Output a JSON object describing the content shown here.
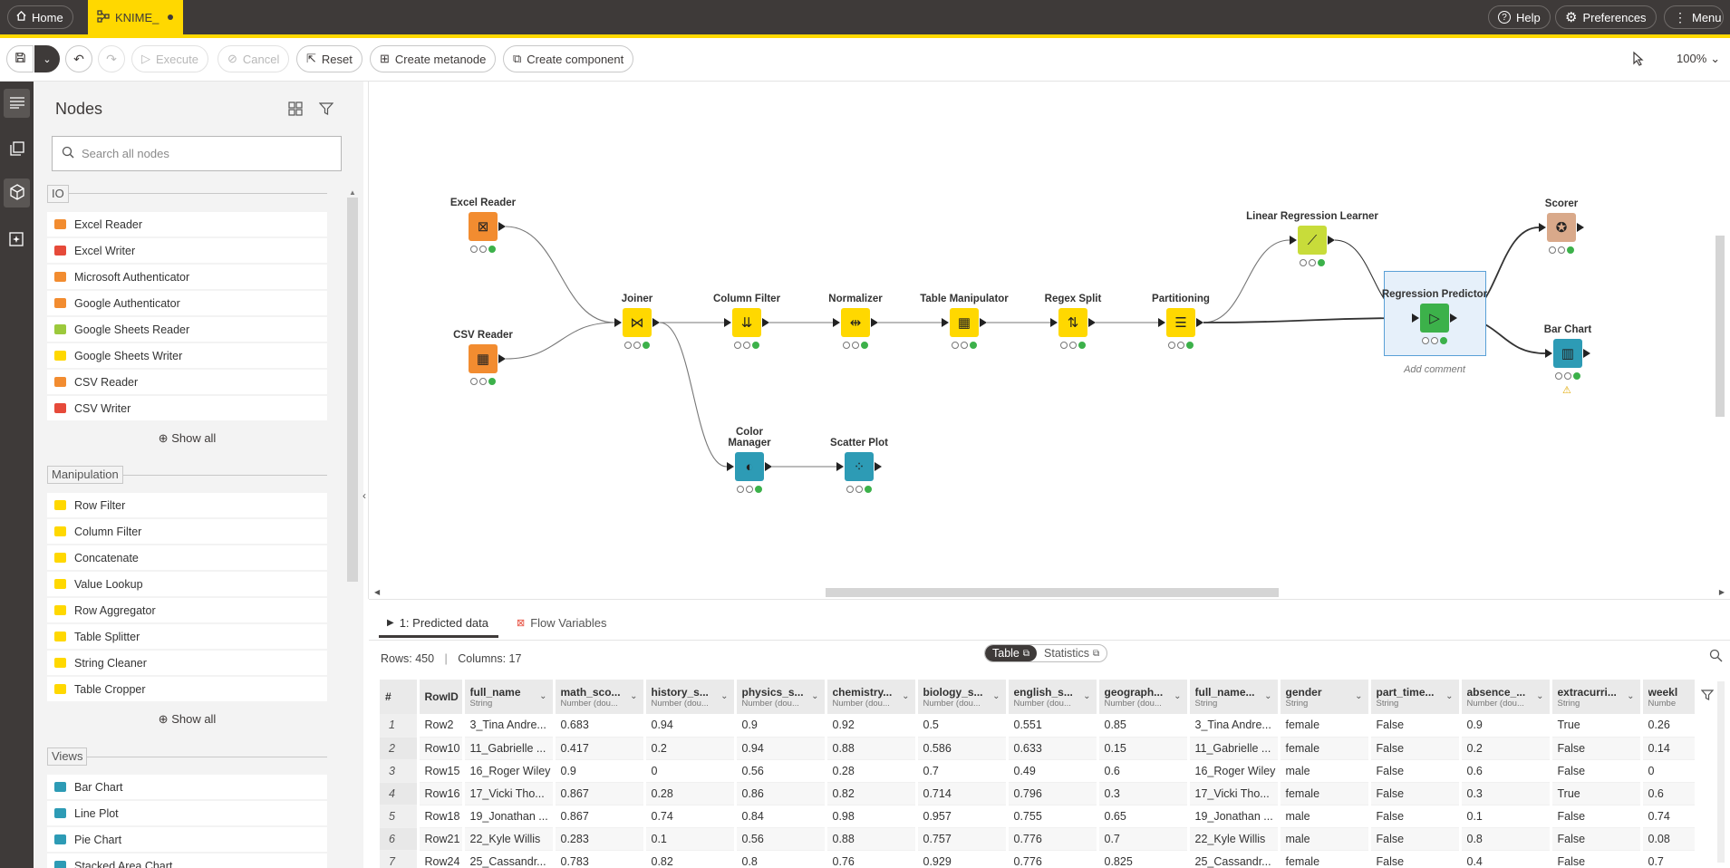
{
  "topbar": {
    "home_label": "Home",
    "workflow_tab_label": "KNIME_",
    "help_label": "Help",
    "preferences_label": "Preferences",
    "menu_label": "Menu"
  },
  "toolbar": {
    "execute_label": "Execute",
    "cancel_label": "Cancel",
    "reset_label": "Reset",
    "create_metanode_label": "Create metanode",
    "create_component_label": "Create component",
    "zoom_label": "100%"
  },
  "panel": {
    "title": "Nodes",
    "search_placeholder": "Search all nodes",
    "show_all_label": "Show all",
    "categories": [
      {
        "name": "IO",
        "items": [
          {
            "label": "Excel Reader",
            "color": "#f28c30"
          },
          {
            "label": "Excel Writer",
            "color": "#e64a3a"
          },
          {
            "label": "Microsoft Authenticator",
            "color": "#f28c30"
          },
          {
            "label": "Google Authenticator",
            "color": "#f28c30"
          },
          {
            "label": "Google Sheets Reader",
            "color": "#9cc93c"
          },
          {
            "label": "Google Sheets Writer",
            "color": "#ffd800"
          },
          {
            "label": "CSV Reader",
            "color": "#f28c30"
          },
          {
            "label": "CSV Writer",
            "color": "#e64a3a"
          }
        ]
      },
      {
        "name": "Manipulation",
        "items": [
          {
            "label": "Row Filter",
            "color": "#ffd800"
          },
          {
            "label": "Column Filter",
            "color": "#ffd800"
          },
          {
            "label": "Concatenate",
            "color": "#ffd800"
          },
          {
            "label": "Value Lookup",
            "color": "#ffd800"
          },
          {
            "label": "Row Aggregator",
            "color": "#ffd800"
          },
          {
            "label": "Table Splitter",
            "color": "#ffd800"
          },
          {
            "label": "String Cleaner",
            "color": "#ffd800"
          },
          {
            "label": "Table Cropper",
            "color": "#ffd800"
          }
        ]
      },
      {
        "name": "Views",
        "items": [
          {
            "label": "Bar Chart",
            "color": "#2d9bb5"
          },
          {
            "label": "Line Plot",
            "color": "#2d9bb5"
          },
          {
            "label": "Pie Chart",
            "color": "#2d9bb5"
          },
          {
            "label": "Stacked Area Chart",
            "color": "#2d9bb5"
          }
        ]
      }
    ]
  },
  "canvas": {
    "nodes": [
      {
        "label": "Excel Reader",
        "color": "#f28c30",
        "glyph": "⊠"
      },
      {
        "label": "CSV Reader",
        "color": "#f28c30",
        "glyph": "▦"
      },
      {
        "label": "Joiner",
        "color": "#ffd800",
        "glyph": "⋈"
      },
      {
        "label": "Column Filter",
        "color": "#ffd800",
        "glyph": "⇊"
      },
      {
        "label": "Normalizer",
        "color": "#ffd800",
        "glyph": "⇹"
      },
      {
        "label": "Table Manipulator",
        "color": "#ffd800",
        "glyph": "▦"
      },
      {
        "label": "Regex Split",
        "color": "#ffd800",
        "glyph": "⇅"
      },
      {
        "label": "Partitioning",
        "color": "#ffd800",
        "glyph": "☰"
      },
      {
        "label": "Linear Regression Learner",
        "color": "#c8dc3a",
        "glyph": "⟋"
      },
      {
        "label": "Regression Predictor",
        "color": "#3cb14a",
        "glyph": "▷"
      },
      {
        "label": "Scorer",
        "color": "#d9a98a",
        "glyph": "✪"
      },
      {
        "label": "Bar Chart",
        "color": "#2d9bb5",
        "glyph": "▥"
      },
      {
        "label": "Color Manager",
        "color": "#2d9bb5",
        "glyph": "◐"
      },
      {
        "label": "Scatter Plot",
        "color": "#2d9bb5",
        "glyph": "⁘"
      }
    ],
    "add_comment_label": "Add comment"
  },
  "bottom": {
    "tab_output": "1: Predicted data",
    "tab_flow_vars": "Flow Variables",
    "view_table_label": "Table",
    "view_stats_label": "Statistics",
    "rows_label": "Rows: 450",
    "columns_label": "Columns: 17",
    "columns": [
      {
        "name": "#",
        "type": ""
      },
      {
        "name": "RowID",
        "type": ""
      },
      {
        "name": "full_name",
        "type": "String"
      },
      {
        "name": "math_sco...",
        "type": "Number (dou..."
      },
      {
        "name": "history_s...",
        "type": "Number (dou..."
      },
      {
        "name": "physics_s...",
        "type": "Number (dou..."
      },
      {
        "name": "chemistry...",
        "type": "Number (dou..."
      },
      {
        "name": "biology_s...",
        "type": "Number (dou..."
      },
      {
        "name": "english_s...",
        "type": "Number (dou..."
      },
      {
        "name": "geograph...",
        "type": "Number (dou..."
      },
      {
        "name": "full_name...",
        "type": "String"
      },
      {
        "name": "gender",
        "type": "String"
      },
      {
        "name": "part_time...",
        "type": "String"
      },
      {
        "name": "absence_...",
        "type": "Number (dou..."
      },
      {
        "name": "extracurri...",
        "type": "String"
      },
      {
        "name": "weekl",
        "type": "Numbe"
      }
    ],
    "rows": [
      [
        "1",
        "Row2",
        "3_Tina Andre...",
        "0.683",
        "0.94",
        "0.9",
        "0.92",
        "0.5",
        "0.551",
        "0.85",
        "3_Tina Andre...",
        "female",
        "False",
        "0.9",
        "True",
        "0.26"
      ],
      [
        "2",
        "Row10",
        "11_Gabrielle ...",
        "0.417",
        "0.2",
        "0.94",
        "0.88",
        "0.586",
        "0.633",
        "0.15",
        "11_Gabrielle ...",
        "female",
        "False",
        "0.2",
        "False",
        "0.14"
      ],
      [
        "3",
        "Row15",
        "16_Roger Wiley",
        "0.9",
        "0",
        "0.56",
        "0.28",
        "0.7",
        "0.49",
        "0.6",
        "16_Roger Wiley",
        "male",
        "False",
        "0.6",
        "False",
        "0"
      ],
      [
        "4",
        "Row16",
        "17_Vicki Tho...",
        "0.867",
        "0.28",
        "0.86",
        "0.82",
        "0.714",
        "0.796",
        "0.3",
        "17_Vicki Tho...",
        "female",
        "False",
        "0.3",
        "True",
        "0.6"
      ],
      [
        "5",
        "Row18",
        "19_Jonathan ...",
        "0.867",
        "0.74",
        "0.84",
        "0.98",
        "0.957",
        "0.755",
        "0.65",
        "19_Jonathan ...",
        "male",
        "False",
        "0.1",
        "False",
        "0.74"
      ],
      [
        "6",
        "Row21",
        "22_Kyle Willis",
        "0.283",
        "0.1",
        "0.56",
        "0.88",
        "0.757",
        "0.776",
        "0.7",
        "22_Kyle Willis",
        "male",
        "False",
        "0.8",
        "False",
        "0.08"
      ],
      [
        "7",
        "Row24",
        "25_Cassandr...",
        "0.783",
        "0.82",
        "0.8",
        "0.76",
        "0.929",
        "0.776",
        "0.825",
        "25_Cassandr...",
        "female",
        "False",
        "0.4",
        "False",
        "0.7"
      ]
    ]
  }
}
